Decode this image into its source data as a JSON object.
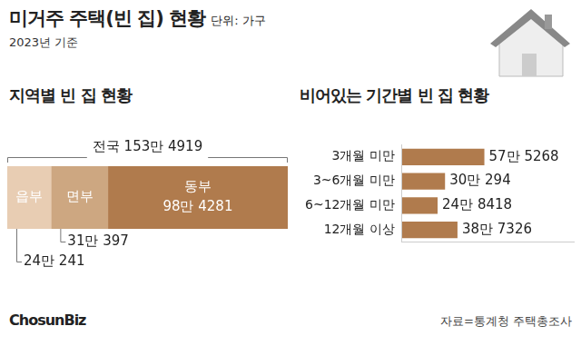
{
  "title": "미거주 주택(빈 집) 현황",
  "unit": "단위: 가구",
  "subtitle": "2023년 기준",
  "source": "자료=통계청 주택총조사",
  "logo": "ChosunBiz",
  "chart_data": [
    {
      "type": "bar",
      "title": "지역별 빈 집 현황",
      "orientation": "horizontal",
      "stacked": true,
      "grid": false,
      "tick_labels": false,
      "data_labels": true,
      "total_label": "전국 153만 4919",
      "xlim": [
        0,
        1534919
      ],
      "categories": [
        null
      ],
      "series": [
        {
          "name": "읍부",
          "color": "#e8cdb3",
          "values": [
            240241
          ],
          "value_labels": [
            "24만 241"
          ]
        },
        {
          "name": "면부",
          "color": "#cda781",
          "values": [
            310397
          ],
          "value_labels": [
            "31만 397"
          ]
        },
        {
          "name": "동부",
          "color": "#b07b4d",
          "values": [
            984281
          ],
          "value_labels": [
            "98만 4281"
          ]
        }
      ]
    },
    {
      "type": "bar",
      "title": "비어있는 기간별 빈 집 현황",
      "orientation": "horizontal",
      "grid": false,
      "tick_labels": "y",
      "data_labels": true,
      "categories": [
        "3개월 미만",
        "3~6개월 미만",
        "6~12개월 미만",
        "12개월 이상"
      ],
      "values": [
        575268,
        300294,
        248418,
        387326
      ],
      "value_labels": [
        "57만 5268",
        "30만 294",
        "24만 8418",
        "38만 7326"
      ],
      "color": "#b07b4d",
      "xlim": [
        0,
        1200000
      ]
    }
  ]
}
